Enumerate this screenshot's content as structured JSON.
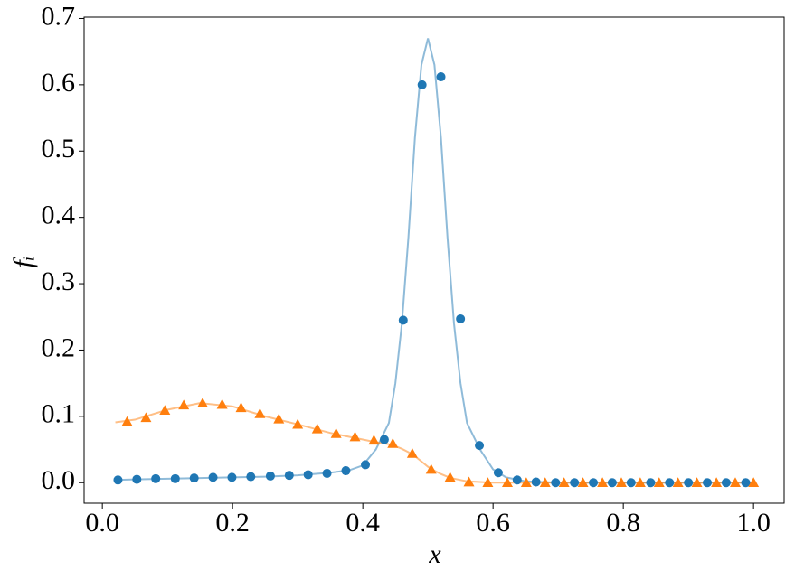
{
  "chart_data": {
    "type": "line",
    "xlabel": "x",
    "ylabel": "fᵢ",
    "xlim": [
      -0.028,
      1.047
    ],
    "ylim": [
      -0.031,
      0.702
    ],
    "xticks": [
      {
        "value": 0,
        "label": "0.0"
      },
      0.2,
      0.4,
      0.6,
      0.8,
      {
        "value": 1,
        "label": "1.0"
      }
    ],
    "yticks": [
      {
        "value": 0,
        "label": "0.0"
      },
      0.1,
      0.2,
      0.3,
      0.4,
      0.5,
      0.6,
      0.7
    ],
    "grid": false,
    "series": [
      {
        "color": "#1f77b4",
        "style": "line",
        "x": [
          0.02,
          0.05,
          0.1,
          0.15,
          0.2,
          0.25,
          0.3,
          0.35,
          0.38,
          0.4,
          0.42,
          0.44,
          0.45,
          0.46,
          0.47,
          0.48,
          0.49,
          0.5,
          0.51,
          0.52,
          0.53,
          0.54,
          0.55,
          0.56,
          0.58,
          0.6,
          0.62,
          0.65,
          0.7,
          0.8,
          0.9,
          1.0
        ],
        "values": [
          0.004,
          0.005,
          0.006,
          0.007,
          0.008,
          0.009,
          0.011,
          0.015,
          0.019,
          0.026,
          0.05,
          0.09,
          0.15,
          0.24,
          0.37,
          0.52,
          0.63,
          0.67,
          0.63,
          0.52,
          0.37,
          0.24,
          0.15,
          0.09,
          0.05,
          0.02,
          0.008,
          0.002,
          0,
          0,
          0,
          0
        ]
      },
      {
        "color": "#ff7f0e",
        "style": "line",
        "x": [
          0.02,
          0.05,
          0.1,
          0.15,
          0.2,
          0.25,
          0.3,
          0.35,
          0.38,
          0.4,
          0.42,
          0.44,
          0.45,
          0.46,
          0.47,
          0.48,
          0.49,
          0.5,
          0.51,
          0.52,
          0.53,
          0.54,
          0.55,
          0.56,
          0.58,
          0.6,
          0.62,
          0.65,
          0.7,
          0.8,
          0.9,
          1.0
        ],
        "values": [
          0.091,
          0.095,
          0.11,
          0.12,
          0.115,
          0.1,
          0.088,
          0.075,
          0.069,
          0.065,
          0.061,
          0.058,
          0.055,
          0.051,
          0.046,
          0.04,
          0.032,
          0.024,
          0.018,
          0.013,
          0.009,
          0.006,
          0.004,
          0.002,
          0.001,
          0,
          0,
          0,
          0,
          0,
          0,
          0
        ]
      },
      {
        "color": "#1f77b4",
        "style": "circle",
        "x": [
          0.024,
          0.053,
          0.082,
          0.112,
          0.141,
          0.17,
          0.199,
          0.228,
          0.258,
          0.287,
          0.316,
          0.345,
          0.374,
          0.404,
          0.433,
          0.462,
          0.491,
          0.52,
          0.55,
          0.579,
          0.608,
          0.637,
          0.666,
          0.696,
          0.725,
          0.754,
          0.783,
          0.812,
          0.842,
          0.871,
          0.9,
          0.929,
          0.958,
          0.988
        ],
        "values": [
          0.004,
          0.005,
          0.006,
          0.006,
          0.007,
          0.008,
          0.008,
          0.009,
          0.01,
          0.011,
          0.012,
          0.014,
          0.018,
          0.027,
          0.065,
          0.245,
          0.6,
          0.612,
          0.247,
          0.056,
          0.015,
          0.004,
          0.001,
          0,
          0,
          0,
          0,
          0,
          0,
          0,
          0,
          0,
          0,
          0
        ]
      },
      {
        "color": "#ff7f0e",
        "style": "triangle",
        "x": [
          0.038,
          0.067,
          0.096,
          0.125,
          0.154,
          0.184,
          0.213,
          0.242,
          0.271,
          0.3,
          0.33,
          0.359,
          0.388,
          0.417,
          0.446,
          0.476,
          0.505,
          0.534,
          0.563,
          0.592,
          0.622,
          0.651,
          0.68,
          0.709,
          0.738,
          0.768,
          0.797,
          0.826,
          0.855,
          0.884,
          0.913,
          0.943,
          0.972,
          1.0
        ],
        "values": [
          0.092,
          0.098,
          0.109,
          0.117,
          0.12,
          0.118,
          0.113,
          0.104,
          0.096,
          0.088,
          0.081,
          0.074,
          0.069,
          0.064,
          0.059,
          0.044,
          0.02,
          0.008,
          0.001,
          0,
          0,
          0,
          0,
          0,
          0,
          0,
          0,
          0,
          0,
          0,
          0,
          0,
          0,
          0
        ]
      }
    ]
  }
}
